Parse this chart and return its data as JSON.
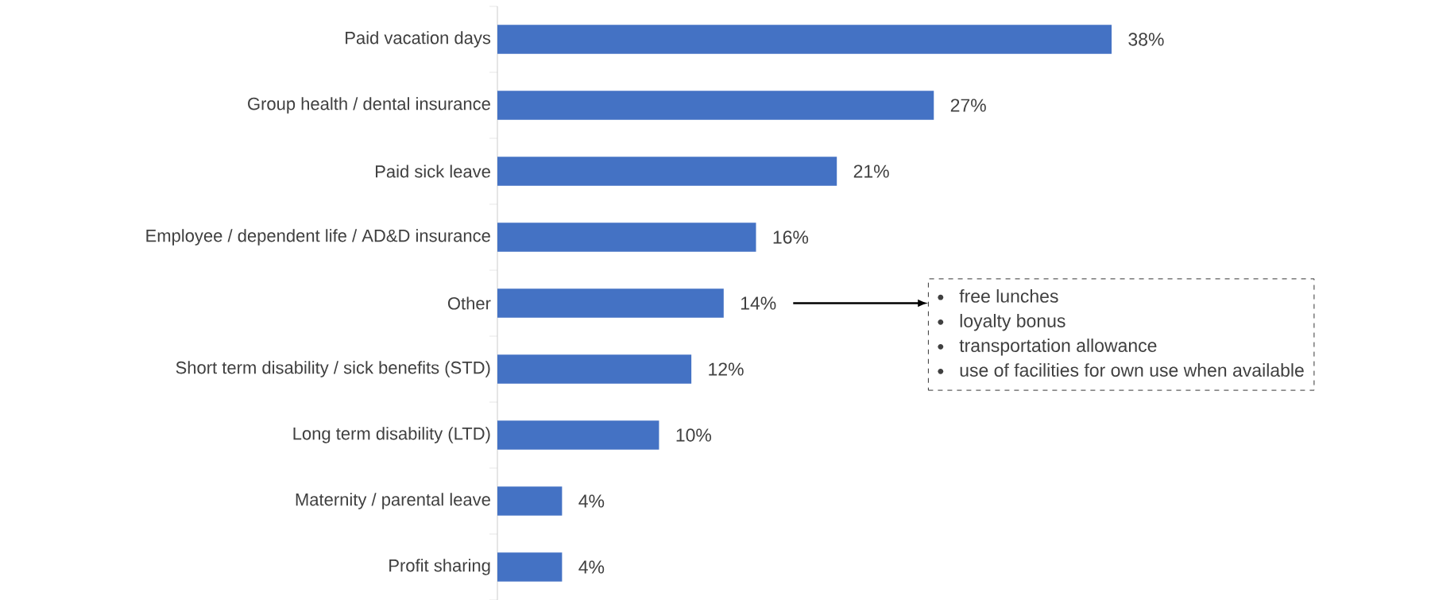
{
  "chart_data": {
    "type": "bar",
    "orientation": "horizontal",
    "categories": [
      "Paid vacation days",
      "Group health / dental insurance",
      "Paid sick leave",
      "Employee / dependent life / AD&D insurance",
      "Other",
      "Short term disability / sick benefits (STD)",
      "Long term disability (LTD)",
      "Maternity / parental leave",
      "Profit sharing"
    ],
    "values": [
      38,
      27,
      21,
      16,
      14,
      12,
      10,
      4,
      4
    ],
    "value_labels": [
      "38%",
      "27%",
      "21%",
      "16%",
      "14%",
      "12%",
      "10%",
      "4%",
      "4%"
    ],
    "color": "#4472c4",
    "annotations": [
      "free lunches",
      "loyalty bonus",
      "transportation allowance",
      "use of facilities for own use when available"
    ]
  }
}
